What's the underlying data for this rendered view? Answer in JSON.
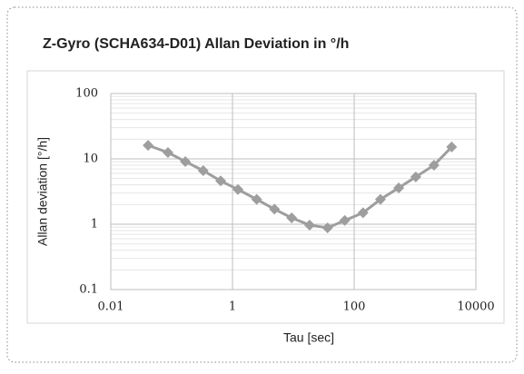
{
  "chart_data": {
    "type": "line",
    "title": "Z-Gyro (SCHA634-D01) Allan Deviation in °/h",
    "x_label": "Tau [sec]",
    "y_label": "Allan deviation [°/h]",
    "x": [
      0.041,
      0.087,
      0.168,
      0.33,
      0.64,
      1.23,
      2.5,
      4.9,
      9.4,
      18.5,
      36.5,
      70,
      140,
      270,
      540,
      1030,
      2050,
      4000
    ],
    "series": [
      {
        "color": "#9e9e9e",
        "values": [
          16.1,
          12.5,
          9.1,
          6.6,
          4.6,
          3.4,
          2.4,
          1.7,
          1.25,
          0.97,
          0.88,
          1.14,
          1.5,
          2.4,
          3.6,
          5.3,
          8.0,
          15.2
        ]
      }
    ],
    "xlim": [
      0.01,
      10000
    ],
    "ylim": [
      0.1,
      100
    ],
    "xticks": [
      0.01,
      1,
      100,
      10000
    ],
    "yticks": [
      0.1,
      1,
      10,
      100
    ],
    "x_log": true,
    "y_log": true,
    "grid": true,
    "minor_grid": true,
    "title_color": "#e4002b"
  }
}
